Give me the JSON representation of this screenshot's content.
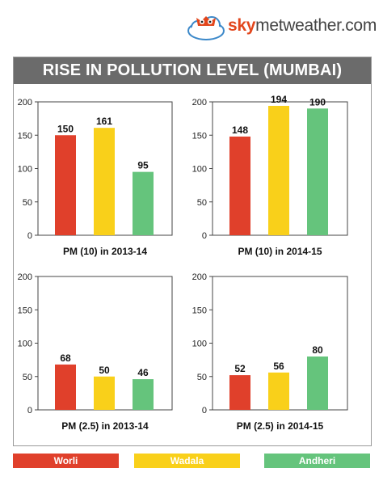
{
  "brand": {
    "sky": "sky",
    "rest": "metweather.com"
  },
  "title": "RISE IN POLLUTION LEVEL (MUMBAI)",
  "legend": [
    {
      "label": "Worli",
      "color": "#e0402b"
    },
    {
      "label": "Wadala",
      "color": "#f9d01a"
    },
    {
      "label": "Andheri",
      "color": "#65c47c"
    }
  ],
  "chart_data": [
    {
      "type": "bar",
      "title": "PM (10) in 2013-14",
      "categories": [
        "Worli",
        "Wadala",
        "Andheri"
      ],
      "values": [
        150,
        161,
        95
      ],
      "ylim": [
        0,
        200
      ],
      "yticks": [
        0,
        50,
        100,
        150,
        200
      ]
    },
    {
      "type": "bar",
      "title": "PM (10) in 2014-15",
      "categories": [
        "Worli",
        "Wadala",
        "Andheri"
      ],
      "values": [
        148,
        194,
        190
      ],
      "ylim": [
        0,
        200
      ],
      "yticks": [
        0,
        50,
        100,
        150,
        200
      ]
    },
    {
      "type": "bar",
      "title": "PM (2.5) in 2013-14",
      "categories": [
        "Worli",
        "Wadala",
        "Andheri"
      ],
      "values": [
        68,
        50,
        46
      ],
      "ylim": [
        0,
        200
      ],
      "yticks": [
        0,
        50,
        100,
        150,
        200
      ]
    },
    {
      "type": "bar",
      "title": "PM (2.5) in 2014-15",
      "categories": [
        "Worli",
        "Wadala",
        "Andheri"
      ],
      "values": [
        52,
        56,
        80
      ],
      "ylim": [
        0,
        200
      ],
      "yticks": [
        0,
        50,
        100,
        150,
        200
      ]
    }
  ]
}
